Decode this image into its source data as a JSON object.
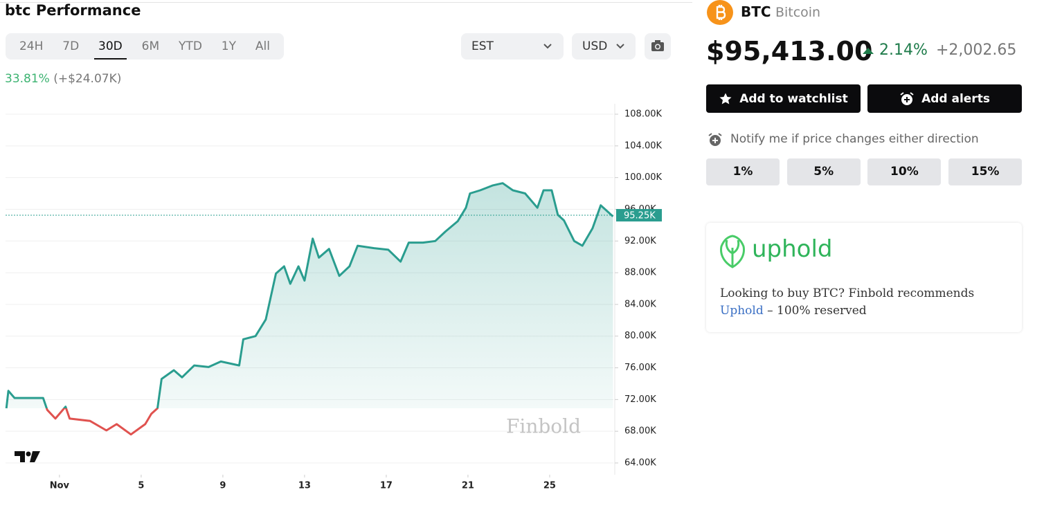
{
  "header": {
    "title": "btc Performance"
  },
  "range_tabs": {
    "options": [
      "24H",
      "7D",
      "30D",
      "6M",
      "YTD",
      "1Y",
      "All"
    ],
    "active": "30D"
  },
  "timezone": "EST",
  "currency": "USD",
  "change": {
    "percent": "33.81%",
    "amount": "(+$24.07K)"
  },
  "chart_data": {
    "type": "line",
    "x": [
      -1.6,
      -1.5,
      -1.2,
      -0.6,
      0.2,
      0.4,
      0.8,
      1.3,
      1.5,
      2.5,
      3.3,
      3.8,
      4.5,
      5.2,
      5.5,
      5.8,
      6.0,
      6.6,
      7.0,
      7.6,
      8.3,
      8.9,
      9.8,
      10.0,
      10.6,
      11.1,
      11.6,
      12.0,
      12.3,
      12.7,
      13.0,
      13.4,
      13.7,
      14.2,
      14.7,
      15.2,
      15.6,
      16.4,
      17.1,
      17.7,
      18.1,
      18.8,
      19.4,
      19.9,
      20.5,
      20.9,
      21.1,
      21.6,
      22.2,
      22.7,
      23.2,
      23.8,
      24.4,
      24.7,
      25.1,
      25.4,
      25.7,
      26.2,
      26.6,
      27.1,
      27.5,
      27.8,
      28.1
    ],
    "values": [
      70.9,
      73.1,
      72.2,
      72.2,
      72.2,
      70.7,
      69.6,
      71.1,
      69.6,
      69.3,
      68.1,
      68.9,
      67.6,
      68.9,
      70.2,
      70.9,
      74.6,
      75.7,
      74.8,
      76.3,
      76.1,
      76.8,
      76.3,
      79.6,
      80.0,
      82.1,
      87.9,
      88.8,
      86.6,
      88.8,
      87.0,
      92.3,
      89.9,
      91.0,
      87.6,
      88.8,
      91.4,
      91.1,
      90.9,
      89.4,
      91.8,
      91.8,
      92.0,
      93.2,
      94.5,
      96.2,
      98.0,
      98.4,
      99.0,
      99.3,
      98.4,
      98.0,
      96.2,
      98.4,
      98.4,
      95.3,
      94.6,
      92.0,
      91.4,
      93.6,
      96.5,
      95.8,
      95.1
    ],
    "up_color": "#2a9d8f",
    "down_color": "#e0524f",
    "xlim": [
      -1.64,
      28.12
    ],
    "xticks": [
      {
        "value": 1,
        "label": "Nov"
      },
      5,
      9,
      13,
      17,
      21,
      25
    ],
    "ylim": [
      64,
      108
    ],
    "yticks": [
      {
        "value": 64,
        "label": "64.00K"
      },
      {
        "value": 68,
        "label": "68.00K"
      },
      {
        "value": 72,
        "label": "72.00K"
      },
      {
        "value": 76,
        "label": "76.00K"
      },
      {
        "value": 80,
        "label": "80.00K"
      },
      {
        "value": 84,
        "label": "84.00K"
      },
      {
        "value": 88,
        "label": "88.00K"
      },
      {
        "value": 92,
        "label": "92.00K"
      },
      {
        "value": 96,
        "label": "96.00K"
      },
      {
        "value": 100,
        "label": "100.00K"
      },
      {
        "value": 104,
        "label": "104.00K"
      },
      {
        "value": 108,
        "label": "108.00K"
      }
    ],
    "grid": true,
    "last_price": {
      "value": 95.25,
      "label": "95.25K"
    },
    "watermark": "Finbold"
  },
  "asset": {
    "symbol": "BTC",
    "name": "Bitcoin",
    "price": "$95,413.00",
    "change_percent": "2.14%",
    "change_amount": "+2,002.65"
  },
  "actions": [
    "Add to watchlist",
    "Add alerts"
  ],
  "alerts": {
    "note": "Notify me if price changes either direction",
    "options": [
      "1%",
      "5%",
      "10%",
      "15%"
    ]
  },
  "promo": {
    "brand": "uphold",
    "text": "Looking to buy BTC? Finbold recommends",
    "link": "Uphold",
    "suffix": "– 100% reserved"
  }
}
